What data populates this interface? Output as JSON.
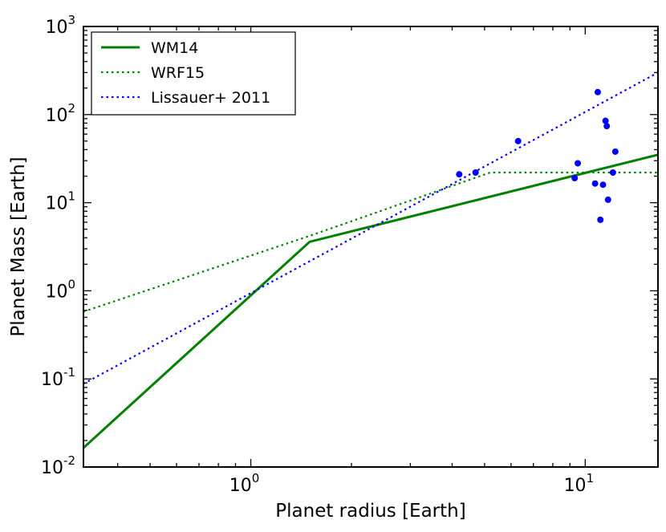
{
  "chart_data": {
    "type": "line",
    "scale": "log-log",
    "title": "",
    "xlabel": "Planet radius [Earth]",
    "ylabel": "Planet Mass [Earth]",
    "xlim": [
      0.316,
      16.5
    ],
    "ylim": [
      0.01,
      1000
    ],
    "x_ticks": [
      {
        "value": 1,
        "base": "10",
        "exp": "0"
      },
      {
        "value": 10,
        "base": "10",
        "exp": "1"
      }
    ],
    "y_ticks": [
      {
        "value": 0.01,
        "base": "10",
        "exp": "-2"
      },
      {
        "value": 0.1,
        "base": "10",
        "exp": "-1"
      },
      {
        "value": 1,
        "base": "10",
        "exp": "0"
      },
      {
        "value": 10,
        "base": "10",
        "exp": "1"
      },
      {
        "value": 100,
        "base": "10",
        "exp": "2"
      },
      {
        "value": 1000,
        "base": "10",
        "exp": "3"
      }
    ],
    "legend": {
      "placement": "top-left",
      "entries": [
        {
          "label": "WM14",
          "color": "#008000",
          "style": "solid"
        },
        {
          "label": "WRF15",
          "color": "#008000",
          "style": "dotted"
        },
        {
          "label": "Lissauer+ 2011",
          "color": "#0000ff",
          "style": "dotted"
        }
      ]
    },
    "series": [
      {
        "name": "WM14",
        "color": "#008000",
        "style": "solid",
        "x": [
          0.316,
          1.5,
          16.5
        ],
        "y": [
          0.0165,
          3.6,
          35
        ]
      },
      {
        "name": "WRF15",
        "color": "#008000",
        "style": "dotted",
        "x": [
          0.316,
          1.5,
          5.2,
          16.5
        ],
        "y": [
          0.58,
          4.2,
          22,
          22
        ]
      },
      {
        "name": "Lissauer+ 2011",
        "color": "#0000ff",
        "style": "dotted",
        "x": [
          0.316,
          16.5
        ],
        "y": [
          0.088,
          300
        ]
      }
    ],
    "scatter": {
      "name": "planets",
      "color": "#0000ff",
      "points": [
        {
          "x": 4.2,
          "y": 21
        },
        {
          "x": 4.7,
          "y": 22
        },
        {
          "x": 6.3,
          "y": 50
        },
        {
          "x": 9.3,
          "y": 19
        },
        {
          "x": 9.5,
          "y": 28
        },
        {
          "x": 10.7,
          "y": 16.5
        },
        {
          "x": 10.9,
          "y": 180
        },
        {
          "x": 11.1,
          "y": 6.4
        },
        {
          "x": 11.3,
          "y": 16
        },
        {
          "x": 11.5,
          "y": 85
        },
        {
          "x": 11.6,
          "y": 74
        },
        {
          "x": 11.7,
          "y": 10.8
        },
        {
          "x": 12.1,
          "y": 22
        },
        {
          "x": 12.3,
          "y": 38
        }
      ]
    }
  }
}
